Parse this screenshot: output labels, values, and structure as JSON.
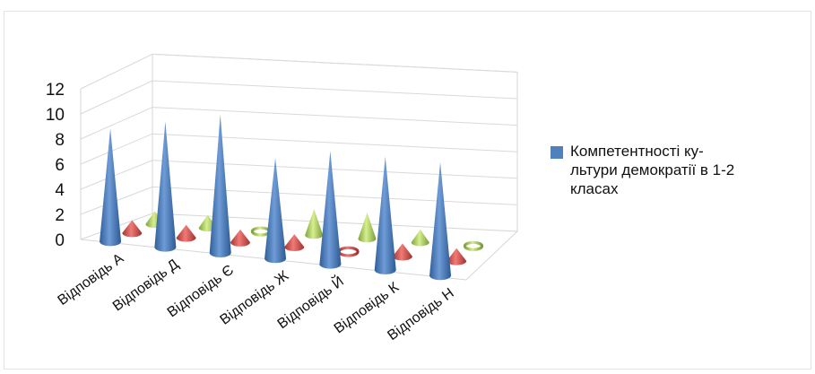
{
  "chart_data": {
    "type": "bar",
    "style": "3d-cone",
    "categories": [
      "Відповідь А",
      "Відповідь Д",
      "Відповідь Є",
      "Відповідь Ж",
      "Відповідь Й",
      "Відповідь К",
      "Відповідь Н"
    ],
    "series": [
      {
        "name": "Компетентності ку-\nльтури демократії в 1-2\nкласах",
        "color": "#4f81bd",
        "values": [
          9,
          10,
          11,
          8,
          9,
          9,
          9
        ]
      },
      {
        "color": "#c0504d",
        "values": [
          1,
          1,
          1,
          1,
          0,
          1,
          1
        ]
      },
      {
        "color": "#9bbb59",
        "values": [
          1,
          1,
          0,
          2,
          2,
          1,
          0
        ]
      }
    ],
    "y_ticks": [
      "0",
      "2",
      "4",
      "6",
      "8",
      "10",
      "12"
    ],
    "ylim": [
      0,
      12
    ],
    "grid": true,
    "legend_position": "right"
  }
}
